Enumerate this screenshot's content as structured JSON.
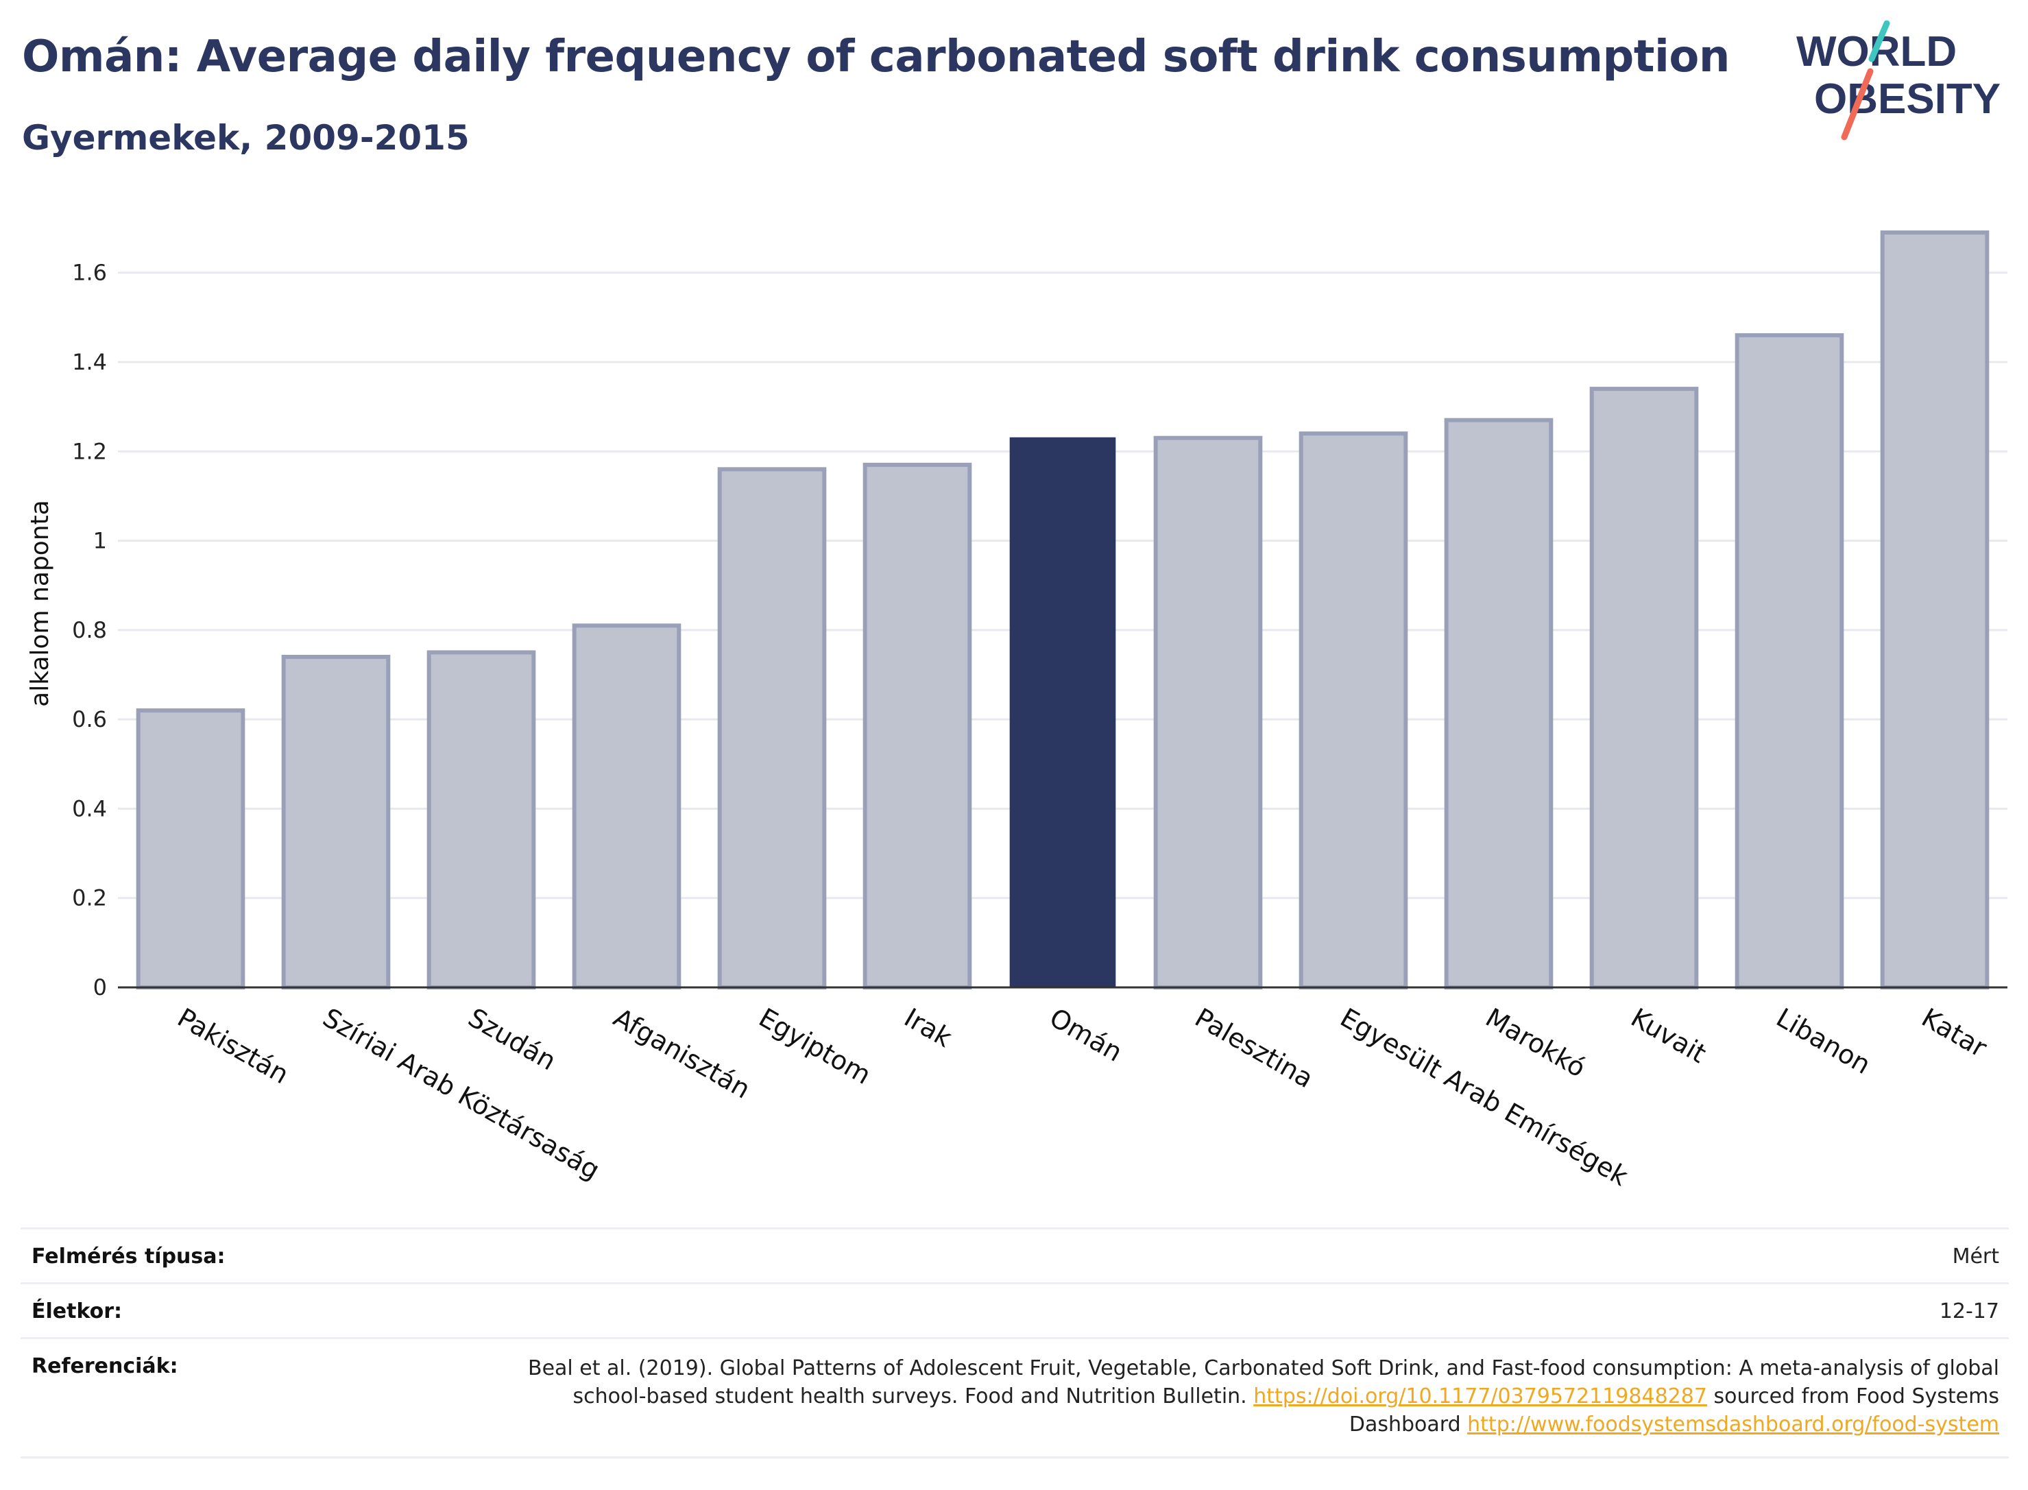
{
  "header": {
    "title": "Omán: Average daily frequency of carbonated soft drink consumption",
    "subtitle": "Gyermekek, 2009-2015"
  },
  "logo": {
    "line1": "WORLD",
    "line2": "OBESITY",
    "colors": {
      "text": "#2b3661",
      "slash_top": "#3ec6c0",
      "slash_bottom": "#ef6b57"
    }
  },
  "colors": {
    "highlight": "#2b3661",
    "bar_fill": "#bfc3d0",
    "bar_stroke": "#9aa0b8",
    "grid": "#e8e9ee",
    "link": "#f0a821"
  },
  "chart_data": {
    "type": "bar",
    "ylabel": "alkalom naponta",
    "ylim": [
      0,
      1.75
    ],
    "yticks": [
      0,
      0.2,
      0.4,
      0.6,
      0.8,
      1,
      1.2,
      1.4,
      1.6
    ],
    "ytick_labels": [
      "0",
      "0.2",
      "0.4",
      "0.6",
      "0.8",
      "1",
      "1.2",
      "1.4",
      "1.6"
    ],
    "grid": true,
    "highlight_category": "Omán",
    "categories": [
      "Pakisztán",
      "Szíriai Arab Köztársaság",
      "Szudán",
      "Afganisztán",
      "Egyiptom",
      "Irak",
      "Omán",
      "Palesztina",
      "Egyesült Arab Emírségek",
      "Marokkó",
      "Kuvait",
      "Libanon",
      "Katar"
    ],
    "values": [
      0.62,
      0.74,
      0.75,
      0.81,
      1.16,
      1.17,
      1.23,
      1.23,
      1.24,
      1.27,
      1.34,
      1.46,
      1.69
    ]
  },
  "meta": {
    "survey_type": {
      "label": "Felmérés típusa:",
      "value": "Mért"
    },
    "age": {
      "label": "Életkor:",
      "value": "12-17"
    },
    "references": {
      "label": "Referenciák:",
      "text1": "Beal et al. (2019). Global Patterns of Adolescent Fruit, Vegetable, Carbonated Soft Drink, and Fast-food consumption: A meta-analysis of global school-based student health surveys. Food and Nutrition Bulletin. ",
      "link1": "https://doi.org/10.1177/0379572119848287",
      "text2": " sourced from Food Systems Dashboard ",
      "link2": "http://www.foodsystemsdashboard.org/food-system"
    }
  }
}
